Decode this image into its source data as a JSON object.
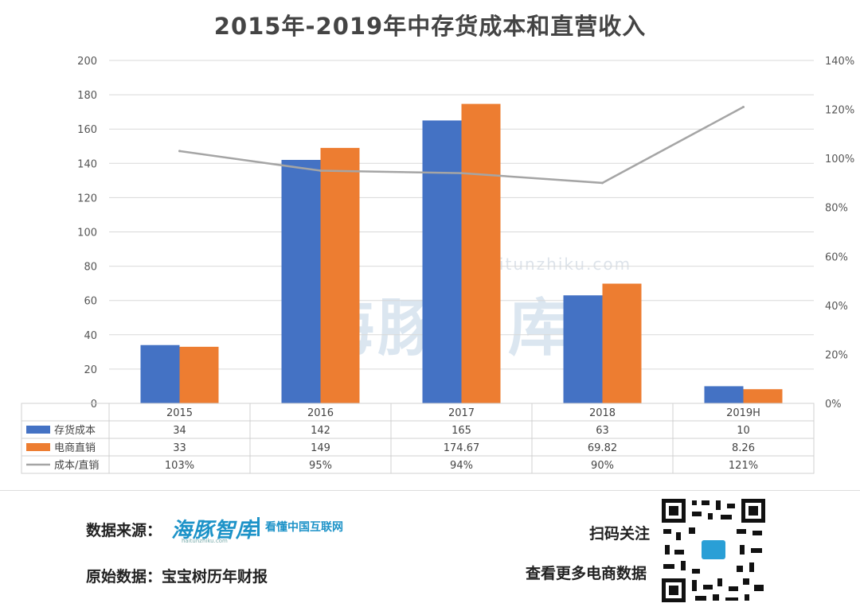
{
  "title": "2015年-2019年中存货成本和直营收入",
  "chart_data": {
    "type": "bar",
    "categories": [
      "2015",
      "2016",
      "2017",
      "2018",
      "2019H"
    ],
    "series": [
      {
        "name": "存货成本",
        "kind": "bar",
        "axis": "left",
        "color": "#4472c4",
        "values": [
          34,
          142,
          165,
          63,
          10
        ],
        "labels": [
          "34",
          "142",
          "165",
          "63",
          "10"
        ]
      },
      {
        "name": "电商直销",
        "kind": "bar",
        "axis": "left",
        "color": "#ed7d31",
        "values": [
          33,
          149,
          174.67,
          69.82,
          8.26
        ],
        "labels": [
          "33",
          "149",
          "174.67",
          "69.82",
          "8.26"
        ]
      },
      {
        "name": "成本/直销",
        "kind": "line",
        "axis": "right",
        "color": "#a5a5a5",
        "values": [
          1.03,
          0.95,
          0.94,
          0.9,
          1.21
        ],
        "labels": [
          "103%",
          "95%",
          "94%",
          "90%",
          "121%"
        ]
      }
    ],
    "ylim": [
      0,
      200
    ],
    "y_ticks": [
      "0",
      "20",
      "40",
      "60",
      "80",
      "100",
      "120",
      "140",
      "160",
      "180",
      "200"
    ],
    "y2lim": [
      0,
      1.4
    ],
    "y2_ticks": [
      "0%",
      "20%",
      "40%",
      "60%",
      "80%",
      "100%",
      "120%",
      "140%"
    ],
    "grid": true,
    "legend": "data-table"
  },
  "watermark": {
    "text": "海豚智库",
    "url": "haitunzhiku.com"
  },
  "footer": {
    "source_label": "数据来源：",
    "brand": "海豚智库",
    "brand_url": "haitunzhiku.com",
    "brand_tag": "看懂中国互联网",
    "origin_label": "原始数据：宝宝树历年财报",
    "scan_label": "扫码关注",
    "more_label": "查看更多电商数据"
  }
}
